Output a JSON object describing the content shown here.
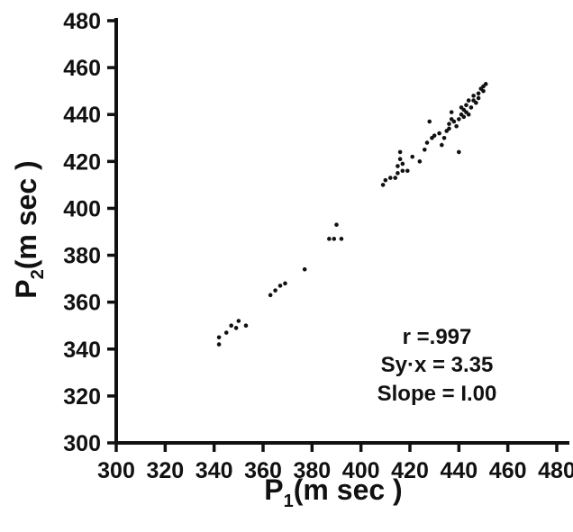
{
  "chart_data": {
    "type": "scatter",
    "xlabel": "P₁(msec)",
    "ylabel": "P₂(msec)",
    "xlabel_parts": {
      "main": "P",
      "sub": "1",
      "rest": "(m sec )"
    },
    "ylabel_parts": {
      "main": "P",
      "sub": "2",
      "rest": "(m sec )"
    },
    "xlim": [
      300,
      480
    ],
    "ylim": [
      300,
      480
    ],
    "xticks": [
      300,
      320,
      340,
      360,
      380,
      400,
      420,
      440,
      460,
      480
    ],
    "yticks": [
      300,
      320,
      340,
      360,
      380,
      400,
      420,
      440,
      460,
      480
    ],
    "grid": false,
    "annotations": [
      "r =.997",
      "Sy·x = 3.35",
      "Slope = I.00"
    ],
    "points": [
      [
        342,
        342
      ],
      [
        342,
        345
      ],
      [
        345,
        347
      ],
      [
        347,
        350
      ],
      [
        349,
        349
      ],
      [
        350,
        352
      ],
      [
        353,
        350
      ],
      [
        363,
        363
      ],
      [
        365,
        365
      ],
      [
        367,
        367
      ],
      [
        369,
        368
      ],
      [
        377,
        374
      ],
      [
        387,
        387
      ],
      [
        389,
        387
      ],
      [
        390,
        393
      ],
      [
        392,
        387
      ],
      [
        409,
        410
      ],
      [
        410,
        412
      ],
      [
        412,
        413
      ],
      [
        414,
        413
      ],
      [
        415,
        415
      ],
      [
        415,
        418
      ],
      [
        416,
        421
      ],
      [
        416,
        424
      ],
      [
        417,
        416
      ],
      [
        417,
        419
      ],
      [
        419,
        416
      ],
      [
        421,
        422
      ],
      [
        424,
        420
      ],
      [
        426,
        425
      ],
      [
        427,
        428
      ],
      [
        428,
        437
      ],
      [
        429,
        430
      ],
      [
        430,
        431
      ],
      [
        432,
        432
      ],
      [
        433,
        427
      ],
      [
        434,
        430
      ],
      [
        435,
        433
      ],
      [
        436,
        434
      ],
      [
        436,
        436
      ],
      [
        437,
        438
      ],
      [
        437,
        441
      ],
      [
        438,
        437
      ],
      [
        439,
        435
      ],
      [
        440,
        438
      ],
      [
        440,
        424
      ],
      [
        441,
        440
      ],
      [
        441,
        443
      ],
      [
        442,
        439
      ],
      [
        442,
        442
      ],
      [
        443,
        441
      ],
      [
        443,
        444
      ],
      [
        444,
        440
      ],
      [
        444,
        446
      ],
      [
        445,
        443
      ],
      [
        446,
        446
      ],
      [
        446,
        448
      ],
      [
        447,
        445
      ],
      [
        448,
        449
      ],
      [
        448,
        447
      ],
      [
        449,
        451
      ],
      [
        450,
        450
      ],
      [
        450,
        452
      ],
      [
        451,
        453
      ]
    ]
  }
}
